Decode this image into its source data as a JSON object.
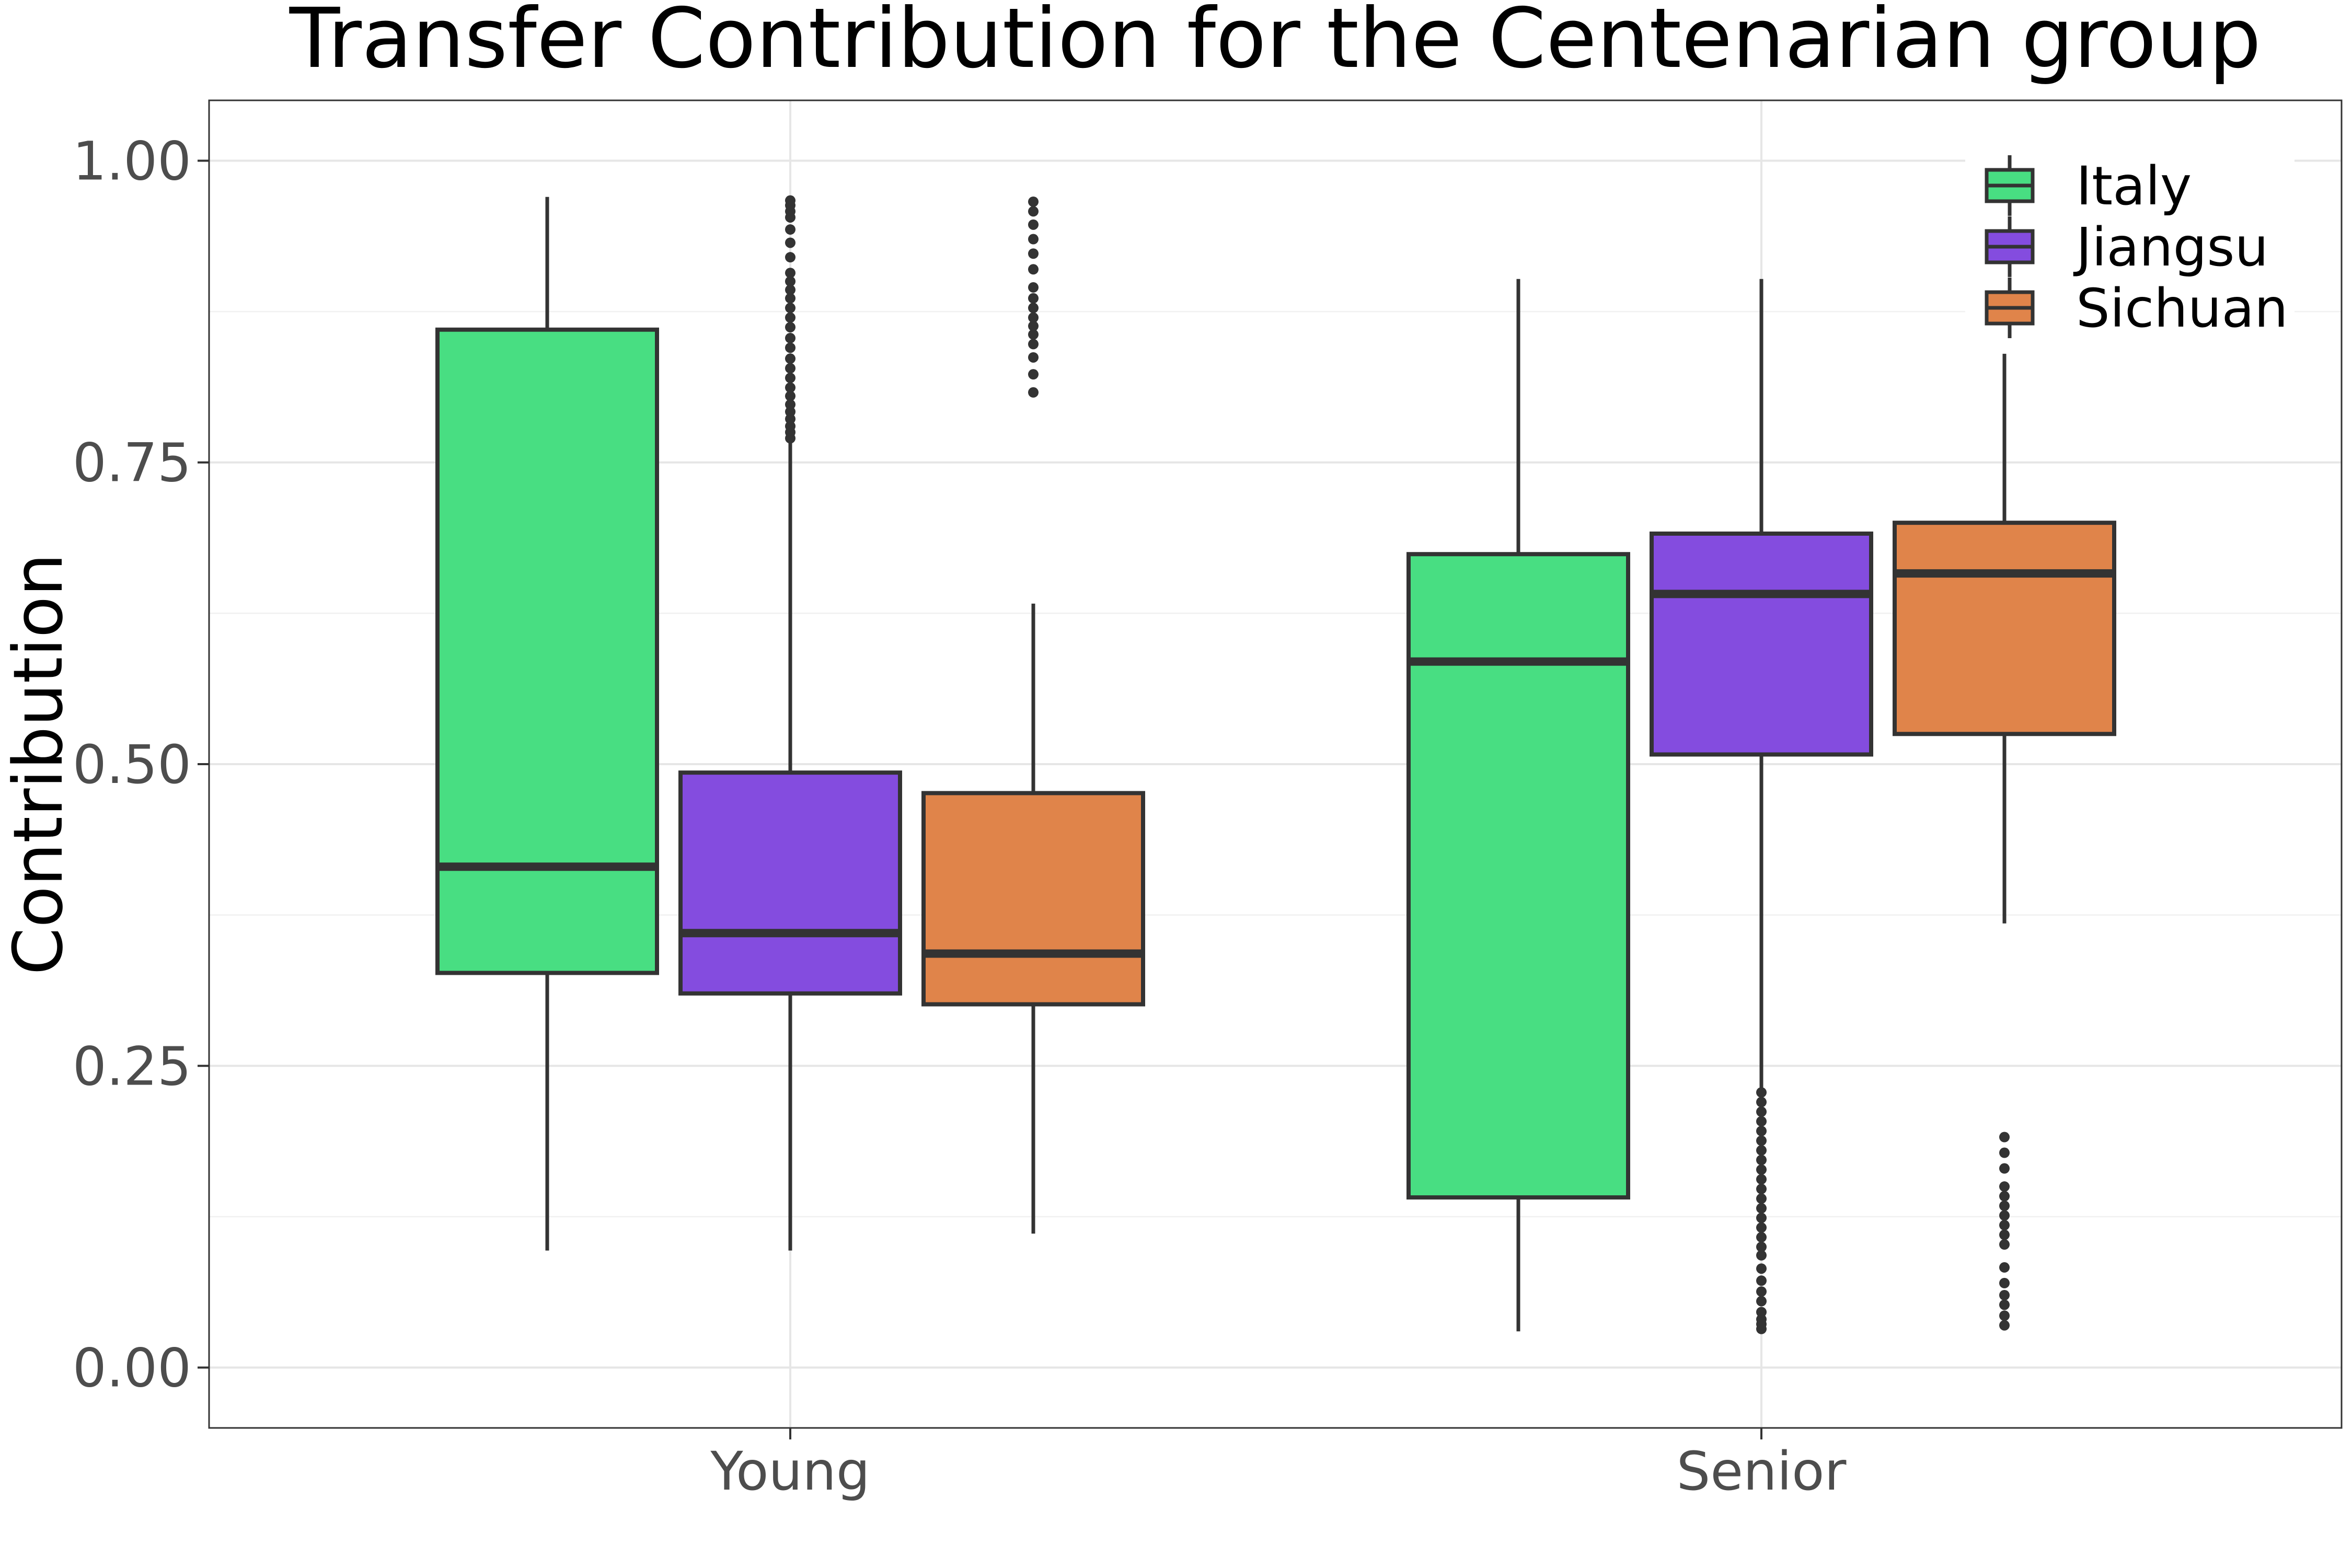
{
  "chart_data": {
    "type": "boxplot",
    "title": "Transfer Contribution for the Centenarian group",
    "xlabel": "",
    "ylabel": "Contribution",
    "ylim": [
      -0.05,
      1.05
    ],
    "y_ticks": [
      0.0,
      0.25,
      0.5,
      0.75,
      1.0
    ],
    "y_tick_labels": [
      "0.00",
      "0.25",
      "0.50",
      "0.75",
      "1.00"
    ],
    "categories": [
      "Young",
      "Senior"
    ],
    "grid": true,
    "legend_position": "top-right",
    "series": [
      {
        "name": "Italy",
        "color": "#48DE82",
        "boxes": [
          {
            "category": "Young",
            "whisker_low": 0.097,
            "q1": 0.327,
            "median": 0.415,
            "q3": 0.86,
            "whisker_high": 0.97,
            "outliers": []
          },
          {
            "category": "Senior",
            "whisker_low": 0.03,
            "q1": 0.141,
            "median": 0.585,
            "q3": 0.674,
            "whisker_high": 0.902,
            "outliers": []
          }
        ]
      },
      {
        "name": "Jiangsu",
        "color": "#844CDF",
        "boxes": [
          {
            "category": "Young",
            "whisker_low": 0.097,
            "q1": 0.31,
            "median": 0.36,
            "q3": 0.493,
            "whisker_high": 0.768,
            "outliers": [
              0.77,
              0.775,
              0.78,
              0.786,
              0.792,
              0.798,
              0.805,
              0.812,
              0.82,
              0.828,
              0.836,
              0.845,
              0.853,
              0.862,
              0.87,
              0.878,
              0.886,
              0.893,
              0.9,
              0.907,
              0.92,
              0.932,
              0.943,
              0.953,
              0.958,
              0.963,
              0.967
            ]
          },
          {
            "category": "Senior",
            "whisker_low": 0.232,
            "q1": 0.508,
            "median": 0.641,
            "q3": 0.691,
            "whisker_high": 0.902,
            "outliers": [
              0.032,
              0.036,
              0.04,
              0.046,
              0.055,
              0.063,
              0.072,
              0.082,
              0.093,
              0.1,
              0.108,
              0.116,
              0.124,
              0.132,
              0.14,
              0.148,
              0.156,
              0.164,
              0.172,
              0.18,
              0.188,
              0.196,
              0.204,
              0.212,
              0.22,
              0.228
            ]
          }
        ]
      },
      {
        "name": "Sichuan",
        "color": "#E0844A",
        "boxes": [
          {
            "category": "Young",
            "whisker_low": 0.111,
            "q1": 0.301,
            "median": 0.343,
            "q3": 0.476,
            "whisker_high": 0.633,
            "outliers": [
              0.808,
              0.823,
              0.837,
              0.848,
              0.856,
              0.863,
              0.87,
              0.878,
              0.886,
              0.895,
              0.91,
              0.923,
              0.935,
              0.947,
              0.958,
              0.966
            ]
          },
          {
            "category": "Senior",
            "whisker_low": 0.368,
            "q1": 0.525,
            "median": 0.658,
            "q3": 0.7,
            "whisker_high": 0.84,
            "outliers": [
              0.035,
              0.043,
              0.052,
              0.06,
              0.07,
              0.083,
              0.102,
              0.11,
              0.118,
              0.126,
              0.134,
              0.142,
              0.15,
              0.165,
              0.178,
              0.191
            ]
          }
        ]
      }
    ]
  }
}
